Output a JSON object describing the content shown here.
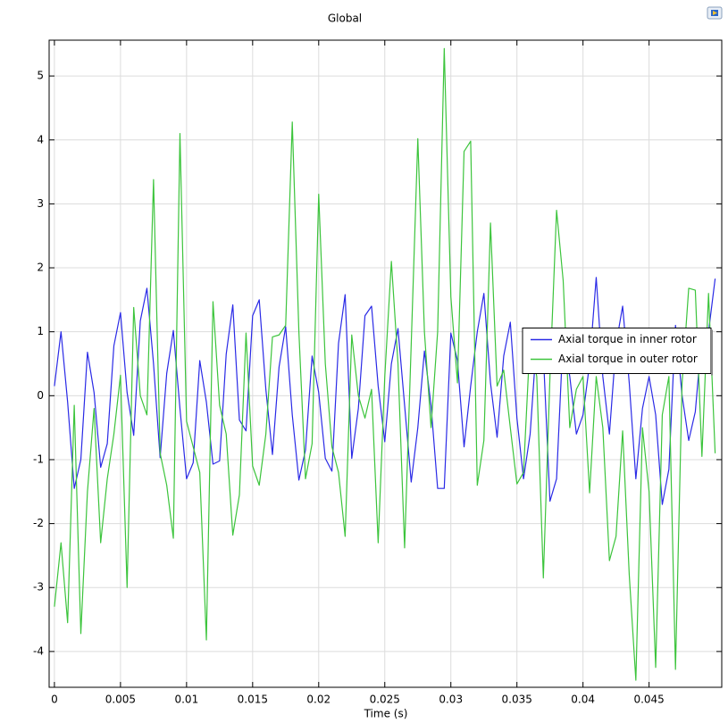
{
  "chart_data": {
    "type": "line",
    "title": "Global",
    "x_label": "Time (s)",
    "x": [
      0,
      0.0005,
      0.001,
      0.0015,
      0.002,
      0.0025,
      0.003,
      0.0035,
      0.004,
      0.0045,
      0.005,
      0.0055,
      0.006,
      0.0065,
      0.007,
      0.0075,
      0.008,
      0.0085,
      0.009,
      0.0095,
      0.01,
      0.0105,
      0.011,
      0.0115,
      0.012,
      0.0125,
      0.013,
      0.0135,
      0.014,
      0.0145,
      0.015,
      0.0155,
      0.016,
      0.0165,
      0.017,
      0.0175,
      0.018,
      0.0185,
      0.019,
      0.0195,
      0.02,
      0.0205,
      0.021,
      0.0215,
      0.022,
      0.0225,
      0.023,
      0.0235,
      0.024,
      0.0245,
      0.025,
      0.0255,
      0.026,
      0.0265,
      0.027,
      0.0275,
      0.028,
      0.0285,
      0.029,
      0.0295,
      0.03,
      0.0305,
      0.031,
      0.0315,
      0.032,
      0.0325,
      0.033,
      0.0335,
      0.034,
      0.0345,
      0.035,
      0.0355,
      0.036,
      0.0365,
      0.037,
      0.0375,
      0.038,
      0.0385,
      0.039,
      0.0395,
      0.04,
      0.0405,
      0.041,
      0.0415,
      0.042,
      0.0425,
      0.043,
      0.0435,
      0.044,
      0.0445,
      0.045,
      0.0455,
      0.046,
      0.0465,
      0.047,
      0.0475,
      0.048,
      0.0485,
      0.049,
      0.0495,
      0.05
    ],
    "series": [
      {
        "name": "Axial torque in inner rotor",
        "color": "#2a2ae6",
        "values": [
          0.15,
          1.0,
          -0.1,
          -1.45,
          -1.0,
          0.68,
          0.05,
          -1.12,
          -0.75,
          0.78,
          1.3,
          0.05,
          -0.62,
          1.17,
          1.68,
          0.5,
          -0.97,
          0.35,
          1.02,
          -0.2,
          -1.3,
          -1.05,
          0.55,
          -0.1,
          -1.07,
          -1.02,
          0.65,
          1.42,
          -0.38,
          -0.55,
          1.25,
          1.5,
          0.1,
          -0.92,
          0.45,
          1.08,
          -0.3,
          -1.32,
          -0.85,
          0.62,
          0.05,
          -0.98,
          -1.18,
          0.82,
          1.58,
          -0.98,
          -0.2,
          1.25,
          1.4,
          0.15,
          -0.72,
          0.5,
          1.05,
          -0.15,
          -1.35,
          -0.5,
          0.7,
          -0.15,
          -1.45,
          -1.45,
          0.98,
          0.55,
          -0.8,
          0.15,
          1.0,
          1.6,
          0.2,
          -0.65,
          0.62,
          1.15,
          -0.35,
          -1.3,
          -0.6,
          0.9,
          0.65,
          -1.65,
          -1.3,
          0.95,
          0.3,
          -0.6,
          -0.3,
          0.5,
          1.85,
          0.3,
          -0.6,
          0.8,
          1.4,
          0.2,
          -1.3,
          -0.2,
          0.3,
          -0.3,
          -1.7,
          -1.15,
          1.1,
          0.0,
          -0.7,
          -0.25,
          0.95,
          1.0,
          1.83
        ]
      },
      {
        "name": "Axial torque in outer rotor",
        "color": "#3cc43c",
        "values": [
          -3.3,
          -2.3,
          -3.55,
          -0.15,
          -3.72,
          -1.5,
          -0.2,
          -2.3,
          -1.3,
          -0.6,
          0.32,
          -3.0,
          1.38,
          0.0,
          -0.3,
          3.38,
          -0.9,
          -1.4,
          -2.23,
          4.1,
          -0.4,
          -0.8,
          -1.2,
          -3.82,
          1.47,
          -0.15,
          -0.6,
          -2.18,
          -1.55,
          0.98,
          -1.1,
          -1.4,
          -0.6,
          0.92,
          0.95,
          1.1,
          4.28,
          1.0,
          -1.3,
          -0.75,
          3.15,
          0.5,
          -0.8,
          -1.2,
          -2.2,
          0.95,
          0.0,
          -0.35,
          0.1,
          -2.3,
          0.3,
          2.1,
          0.5,
          -2.38,
          0.8,
          4.02,
          1.0,
          -0.5,
          1.0,
          5.43,
          1.55,
          0.2,
          3.82,
          3.98,
          -1.4,
          -0.7,
          2.7,
          0.15,
          0.4,
          -0.5,
          -1.38,
          -1.2,
          0.9,
          0.3,
          -2.85,
          0.3,
          2.9,
          1.8,
          -0.5,
          0.1,
          0.3,
          -1.52,
          0.3,
          -0.5,
          -2.58,
          -2.2,
          -0.55,
          -2.8,
          -4.45,
          -0.5,
          -1.5,
          -4.25,
          -0.3,
          0.3,
          -4.28,
          0.2,
          1.68,
          1.65,
          -0.95,
          1.6,
          -0.9
        ]
      }
    ],
    "xlim": [
      -0.0004,
      0.0505
    ],
    "ylim": [
      -4.56,
      5.56
    ],
    "xticks": [
      0,
      0.005,
      0.01,
      0.015,
      0.02,
      0.025,
      0.03,
      0.035,
      0.04,
      0.045
    ],
    "yticks": [
      -4,
      -3,
      -2,
      -1,
      0,
      1,
      2,
      3,
      4,
      5
    ],
    "grid": true,
    "legend": "right"
  }
}
